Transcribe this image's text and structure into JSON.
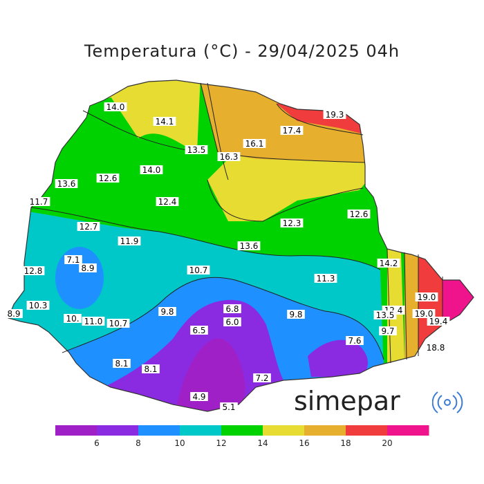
{
  "title": "Temperatura (°C) - 29/04/2025 04h",
  "brand": "simepar",
  "brand_icon": "radar-waves-icon",
  "legend": {
    "bins": [
      {
        "from": 4,
        "to": 6,
        "color": "#a020c8"
      },
      {
        "from": 6,
        "to": 8,
        "color": "#8a2be2"
      },
      {
        "from": 8,
        "to": 10,
        "color": "#1e90ff"
      },
      {
        "from": 10,
        "to": 12,
        "color": "#00c8c8"
      },
      {
        "from": 12,
        "to": 14,
        "color": "#00d200"
      },
      {
        "from": 14,
        "to": 16,
        "color": "#e6dc32"
      },
      {
        "from": 16,
        "to": 18,
        "color": "#e6af2d"
      },
      {
        "from": 18,
        "to": 20,
        "color": "#f03c3c"
      },
      {
        "from": 20,
        "to": 22,
        "color": "#f0148c"
      }
    ],
    "ticks": [
      "6",
      "8",
      "10",
      "12",
      "14",
      "16",
      "18",
      "20"
    ]
  },
  "stations": [
    "14.0",
    "14.1",
    "13.5",
    "16.1",
    "17.4",
    "19.3",
    "16.3",
    "13.6",
    "12.6",
    "14.0",
    "12.4",
    "11.7",
    "12.7",
    "11.9",
    "13.6",
    "12.3",
    "12.6",
    "14.2",
    "7.1",
    "8.9",
    "12.8",
    "10.7",
    "11.3",
    "10.3",
    "8.9",
    "10.",
    "11.0",
    "10.7",
    "9.8",
    "6.8",
    "6.0",
    "9.8",
    "12.4",
    "13.5",
    "19.0",
    "19.0",
    "19.4",
    "9.7",
    "6.5",
    "7.6",
    "18.8",
    "8.1",
    "8.1",
    "7.2",
    "4.9",
    "5.1"
  ]
}
